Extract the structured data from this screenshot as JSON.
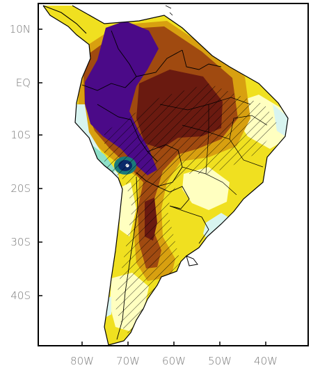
{
  "map": {
    "lat_labels": [
      "10N",
      "EQ",
      "10S",
      "20S",
      "30S",
      "40S"
    ],
    "lon_labels": [
      "80W",
      "70W",
      "60W",
      "50W",
      "40W"
    ],
    "extent": {
      "lon": [
        -89,
        -29
      ],
      "lat": [
        14,
        -50
      ]
    },
    "fill_colors": {
      "ocean": "#ffffff",
      "light_yellow": "#ffffc0",
      "yellow": "#f0e020",
      "gold": "#d8a010",
      "brown": "#a04a10",
      "dark_brown": "#6a1a10",
      "indigo": "#4b0a88",
      "pale_cyan": "#d8f4f0",
      "aqua": "#8ee0c8",
      "teal": "#1a7a7a",
      "navy": "#0a2a6a"
    }
  }
}
